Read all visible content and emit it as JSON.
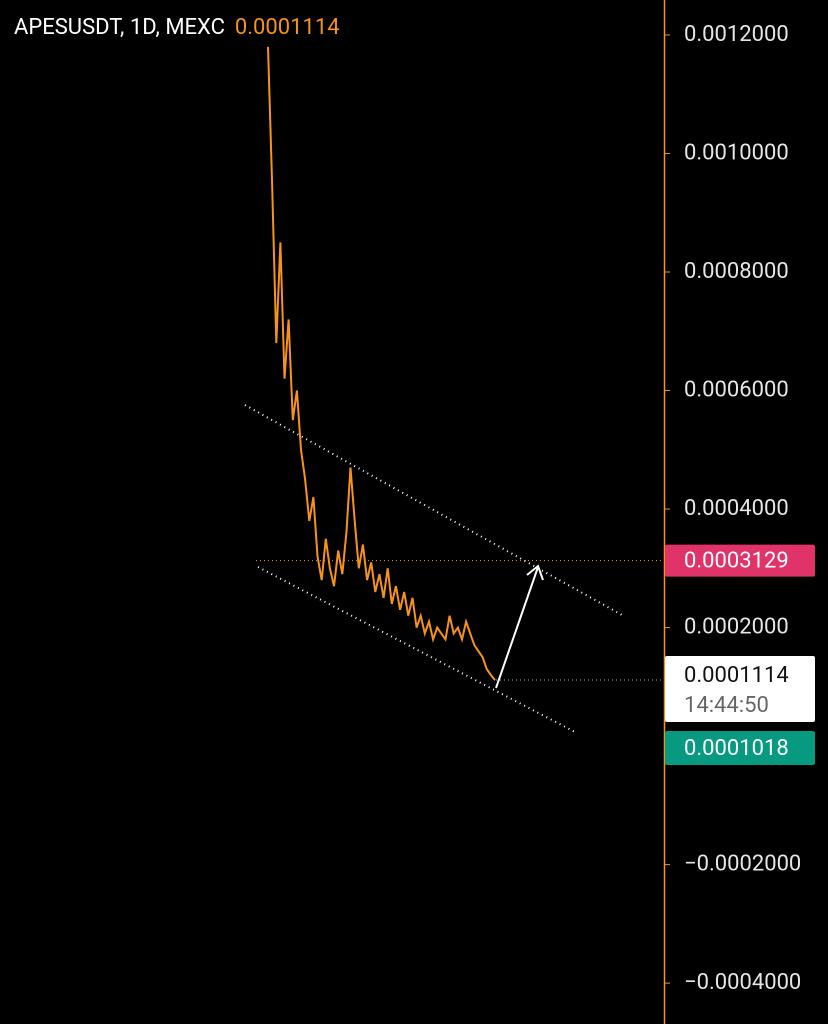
{
  "chart_data": {
    "type": "line",
    "title": "APESUSDT, 1D, MEXC",
    "last_price": 0.0001114,
    "countdown": "14:44:50",
    "target_price": 0.0003129,
    "low_price": 0.0001018,
    "series": [
      {
        "name": "APESUSDT",
        "color": "#f7931a",
        "values": [
          0.00118,
          0.00095,
          0.00068,
          0.00085,
          0.00062,
          0.00072,
          0.00055,
          0.0006,
          0.0005,
          0.00045,
          0.00038,
          0.00042,
          0.00032,
          0.00028,
          0.00035,
          0.0003,
          0.00027,
          0.00033,
          0.00029,
          0.00036,
          0.00047,
          0.00038,
          0.0003,
          0.00034,
          0.00028,
          0.00031,
          0.00026,
          0.00029,
          0.00025,
          0.0003,
          0.00024,
          0.00027,
          0.00023,
          0.00026,
          0.00022,
          0.00025,
          0.0002,
          0.00022,
          0.00019,
          0.00021,
          0.00018,
          0.0002,
          0.00019,
          0.00018,
          0.00022,
          0.00019,
          0.0002,
          0.00018,
          0.00021,
          0.00019,
          0.00017,
          0.00016,
          0.00015,
          0.00013,
          0.00012,
          0.0001114
        ]
      }
    ],
    "ylim": [
      -0.000469,
      0.001259
    ],
    "yticks": [
      {
        "value": 0.0012,
        "label": "0.0012000"
      },
      {
        "value": 0.001,
        "label": "0.0010000"
      },
      {
        "value": 0.0008,
        "label": "0.0008000"
      },
      {
        "value": 0.0006,
        "label": "0.0006000"
      },
      {
        "value": 0.0004,
        "label": "0.0004000"
      },
      {
        "value": 0.0002,
        "label": "0.0002000"
      },
      {
        "value": -0.0002,
        "label": "−0.0002000"
      },
      {
        "value": -0.0004,
        "label": "−0.0004000"
      }
    ]
  }
}
